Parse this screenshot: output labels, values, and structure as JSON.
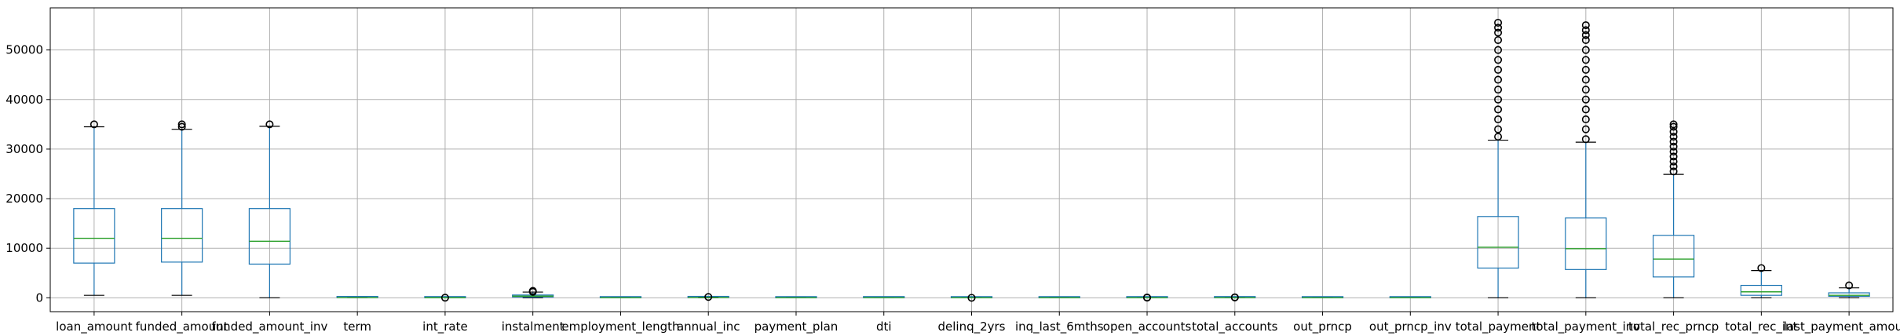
{
  "chart_data": {
    "type": "boxplot",
    "title": "",
    "xlabel": "",
    "ylabel": "",
    "ylim": [
      -2800,
      58500
    ],
    "yticks": [
      0,
      10000,
      20000,
      30000,
      40000,
      50000
    ],
    "grid": true,
    "colors": {
      "box": "#1f77b4",
      "median": "#2ca02c",
      "outlier": "#000000",
      "grid": "#b0b0b0"
    },
    "categories": [
      "loan_amount",
      "funded_amount",
      "funded_amount_inv",
      "term",
      "int_rate",
      "instalment",
      "employment_length",
      "annual_inc",
      "payment_plan",
      "dti",
      "delinq_2yrs",
      "inq_last_6mths",
      "open_accounts",
      "total_accounts",
      "out_prncp",
      "out_prncp_inv",
      "total_payment",
      "total_payment_inv",
      "total_rec_prncp",
      "total_rec_int",
      "last_payment_amount"
    ],
    "boxes": [
      {
        "whislo": 500,
        "q1": 7000,
        "med": 12000,
        "q3": 18000,
        "whishi": 34500,
        "outliers": [
          35000
        ]
      },
      {
        "whislo": 500,
        "q1": 7200,
        "med": 12000,
        "q3": 18000,
        "whishi": 34000,
        "outliers": [
          34500,
          35000
        ]
      },
      {
        "whislo": 0,
        "q1": 6800,
        "med": 11400,
        "q3": 18000,
        "whishi": 34600,
        "outliers": [
          35000
        ]
      },
      {
        "whislo": 36,
        "q1": 36,
        "med": 36,
        "q3": 60,
        "whishi": 60,
        "outliers": []
      },
      {
        "whislo": 5,
        "q1": 10,
        "med": 13,
        "q3": 16,
        "whishi": 25,
        "outliers": [
          26
        ]
      },
      {
        "whislo": 15,
        "q1": 170,
        "med": 330,
        "q3": 560,
        "whishi": 1150,
        "outliers": [
          1200,
          1300,
          1400
        ]
      },
      {
        "whislo": 0,
        "q1": 2,
        "med": 5,
        "q3": 10,
        "whishi": 10,
        "outliers": []
      },
      {
        "whislo": 20,
        "q1": 45,
        "med": 65,
        "q3": 90,
        "whishi": 150,
        "outliers": [
          170
        ]
      },
      {
        "whislo": 0,
        "q1": 0,
        "med": 0,
        "q3": 0,
        "whishi": 0,
        "outliers": []
      },
      {
        "whislo": 0,
        "q1": 10,
        "med": 16,
        "q3": 22,
        "whishi": 40,
        "outliers": []
      },
      {
        "whislo": 0,
        "q1": 0,
        "med": 0,
        "q3": 0,
        "whishi": 0,
        "outliers": [
          1
        ]
      },
      {
        "whislo": 0,
        "q1": 0,
        "med": 1,
        "q3": 1,
        "whishi": 2,
        "outliers": []
      },
      {
        "whislo": 1,
        "q1": 7,
        "med": 9,
        "q3": 12,
        "whishi": 20,
        "outliers": [
          30,
          60
        ]
      },
      {
        "whislo": 2,
        "q1": 14,
        "med": 20,
        "q3": 28,
        "whishi": 50,
        "outliers": [
          70,
          100
        ]
      },
      {
        "whislo": 0,
        "q1": 0,
        "med": 0,
        "q3": 0,
        "whishi": 0,
        "outliers": []
      },
      {
        "whislo": 0,
        "q1": 0,
        "med": 0,
        "q3": 0,
        "whishi": 0,
        "outliers": []
      },
      {
        "whislo": 0,
        "q1": 6000,
        "med": 10200,
        "q3": 16400,
        "whishi": 31800,
        "outliers": [
          32500,
          34000,
          36000,
          38000,
          40000,
          42000,
          44000,
          46000,
          48000,
          50000,
          52000,
          53500,
          54500,
          55500
        ]
      },
      {
        "whislo": 0,
        "q1": 5700,
        "med": 9900,
        "q3": 16100,
        "whishi": 31400,
        "outliers": [
          32000,
          34000,
          36000,
          38000,
          40000,
          42000,
          44000,
          46000,
          48000,
          50000,
          52000,
          53000,
          54000,
          55000
        ]
      },
      {
        "whislo": 0,
        "q1": 4200,
        "med": 7800,
        "q3": 12600,
        "whishi": 24900,
        "outliers": [
          25500,
          26500,
          27500,
          28500,
          29500,
          30500,
          31500,
          32500,
          33500,
          34500,
          35000
        ]
      },
      {
        "whislo": 0,
        "q1": 500,
        "med": 1200,
        "q3": 2500,
        "whishi": 5500,
        "outliers": [
          6000
        ]
      },
      {
        "whislo": 0,
        "q1": 300,
        "med": 500,
        "q3": 1000,
        "whishi": 2000,
        "outliers": [
          2500
        ]
      }
    ]
  }
}
